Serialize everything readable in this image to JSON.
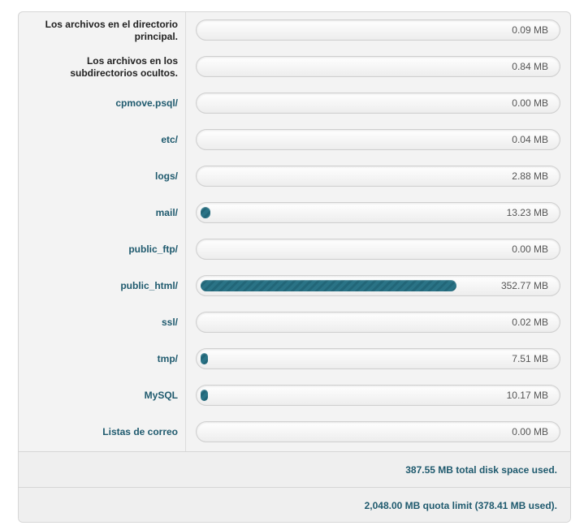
{
  "rows": [
    {
      "label": "Los archivos en el directorio principal.",
      "value": "0.09 MB",
      "mb": 0.09
    },
    {
      "label": "Los archivos en los subdirectorios ocultos.",
      "value": "0.84 MB",
      "mb": 0.84
    },
    {
      "label": "cpmove.psql/",
      "value": "0.00 MB",
      "mb": 0.0
    },
    {
      "label": "etc/",
      "value": "0.04 MB",
      "mb": 0.04
    },
    {
      "label": "logs/",
      "value": "2.88 MB",
      "mb": 2.88
    },
    {
      "label": "mail/",
      "value": "13.23 MB",
      "mb": 13.23
    },
    {
      "label": "public_ftp/",
      "value": "0.00 MB",
      "mb": 0.0
    },
    {
      "label": "public_html/",
      "value": "352.77 MB",
      "mb": 352.77
    },
    {
      "label": "ssl/",
      "value": "0.02 MB",
      "mb": 0.02
    },
    {
      "label": "tmp/",
      "value": "7.51 MB",
      "mb": 7.51
    },
    {
      "label": "MySQL",
      "value": "10.17 MB",
      "mb": 10.17
    },
    {
      "label": "Listas de correo",
      "value": "0.00 MB",
      "mb": 0.0
    }
  ],
  "summary": {
    "total": "387.55 MB total disk space used.",
    "quota": "2,048.00 MB quota limit (378.41 MB used)."
  },
  "colors": {
    "accent": "#226678",
    "link": "#1f5a6e"
  }
}
